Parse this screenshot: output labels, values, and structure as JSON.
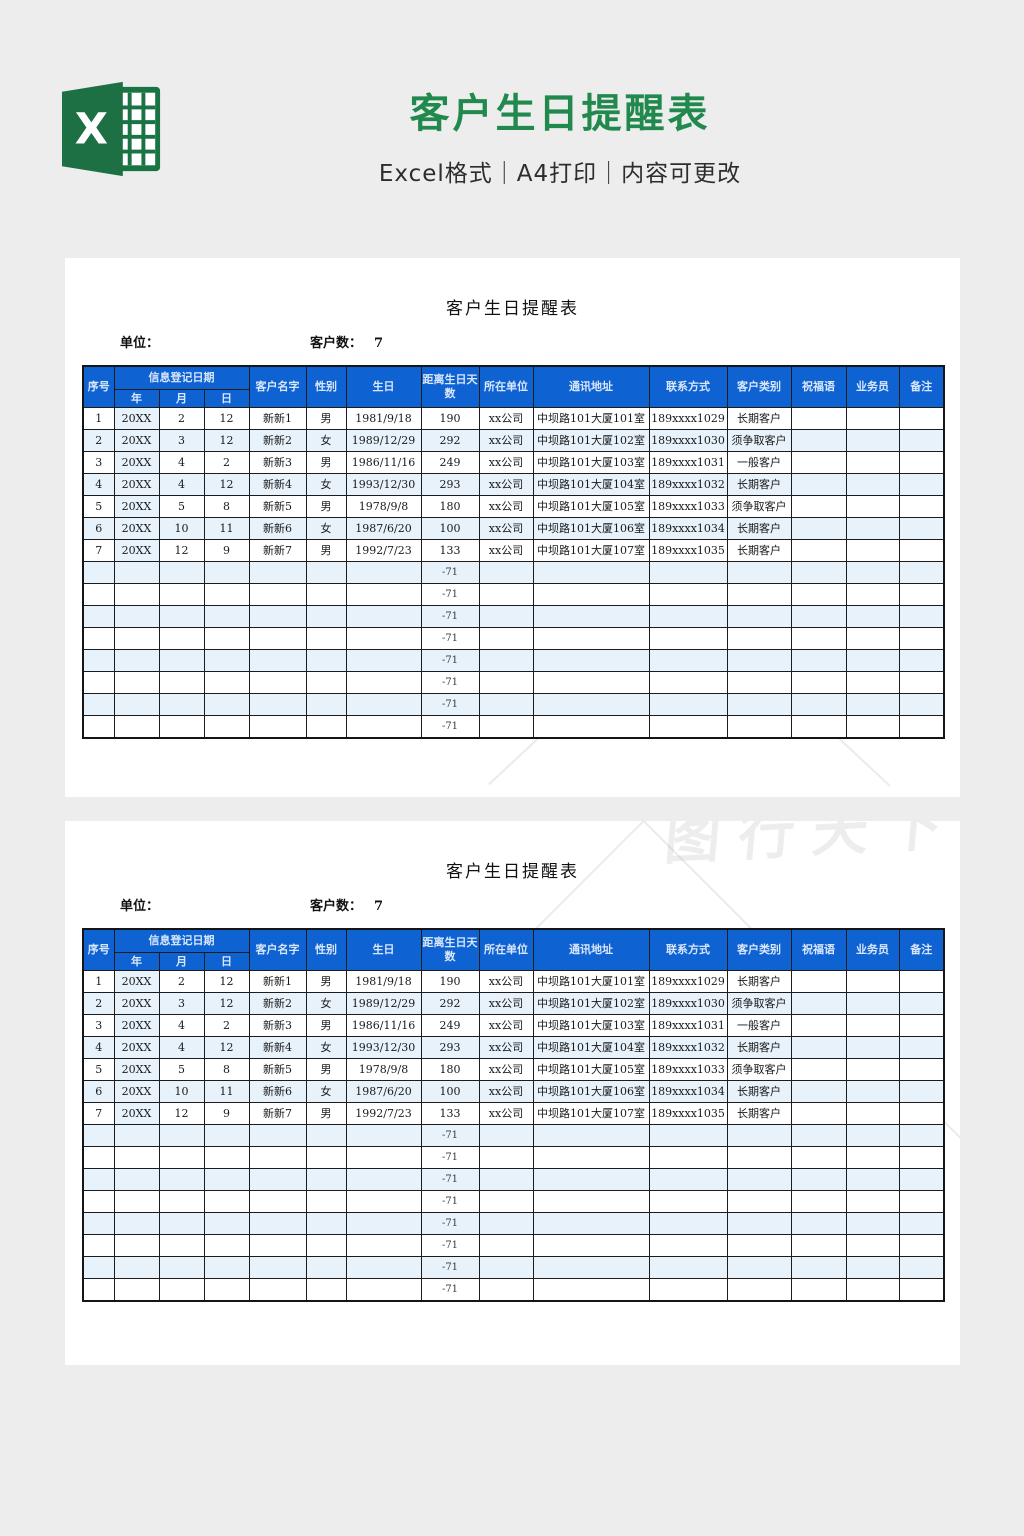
{
  "brand": {
    "title": "客户生日提醒表",
    "subtitle": "Excel格式｜A4打印｜内容可更改",
    "icon_letter": "X"
  },
  "watermark_text": "图行天下",
  "sheet": {
    "title": "客户生日提醒表",
    "unit_label": "单位：",
    "count_label": "客户数：",
    "count_value": "7",
    "header": {
      "index": "序号",
      "reg_date_group": "信息登记日期",
      "year": "年",
      "month": "月",
      "day": "日",
      "name": "客户名字",
      "gender": "性别",
      "birthday": "生日",
      "days_left": "距离生日天数",
      "company": "所在单位",
      "address": "通讯地址",
      "contact": "联系方式",
      "category": "客户类别",
      "greeting": "祝福语",
      "salesman": "业务员",
      "remark": "备注"
    },
    "rows": [
      [
        "1",
        "20XX",
        "2",
        "12",
        "新新1",
        "男",
        "1981/9/18",
        "190",
        "xx公司",
        "中坝路101大厦101室",
        "189xxxx1029",
        "长期客户",
        "",
        "",
        ""
      ],
      [
        "2",
        "20XX",
        "3",
        "12",
        "新新2",
        "女",
        "1989/12/29",
        "292",
        "xx公司",
        "中坝路101大厦102室",
        "189xxxx1030",
        "须争取客户",
        "",
        "",
        ""
      ],
      [
        "3",
        "20XX",
        "4",
        "2",
        "新新3",
        "男",
        "1986/11/16",
        "249",
        "xx公司",
        "中坝路101大厦103室",
        "189xxxx1031",
        "一般客户",
        "",
        "",
        ""
      ],
      [
        "4",
        "20XX",
        "4",
        "12",
        "新新4",
        "女",
        "1993/12/30",
        "293",
        "xx公司",
        "中坝路101大厦104室",
        "189xxxx1032",
        "长期客户",
        "",
        "",
        ""
      ],
      [
        "5",
        "20XX",
        "5",
        "8",
        "新新5",
        "男",
        "1978/9/8",
        "180",
        "xx公司",
        "中坝路101大厦105室",
        "189xxxx1033",
        "须争取客户",
        "",
        "",
        ""
      ],
      [
        "6",
        "20XX",
        "10",
        "11",
        "新新6",
        "女",
        "1987/6/20",
        "100",
        "xx公司",
        "中坝路101大厦106室",
        "189xxxx1034",
        "长期客户",
        "",
        "",
        ""
      ],
      [
        "7",
        "20XX",
        "12",
        "9",
        "新新7",
        "男",
        "1992/7/23",
        "133",
        "xx公司",
        "中坝路101大厦107室",
        "189xxxx1035",
        "长期客户",
        "",
        "",
        ""
      ]
    ],
    "empty_rows": {
      "count": 8,
      "days_value": "-71"
    }
  },
  "colors": {
    "header_blue": "#0f62d2",
    "alt_row_blue": "#e7f2fa",
    "brand_green": "#21894e",
    "page_bg": "#ededed"
  }
}
